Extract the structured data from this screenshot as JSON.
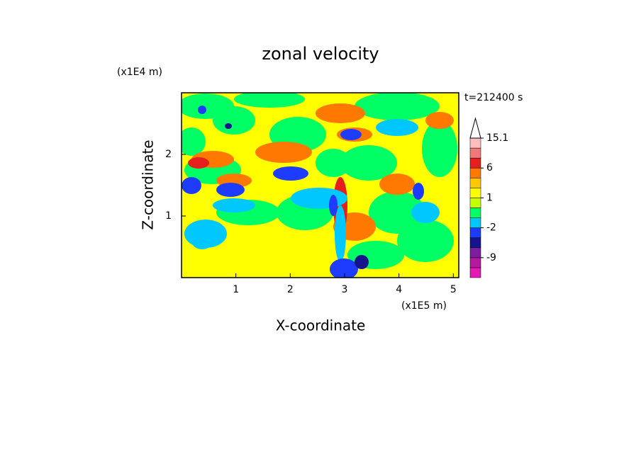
{
  "chart_data": {
    "type": "contour",
    "title": "zonal velocity",
    "x_label": "X-coordinate",
    "y_label": "Z-coordinate",
    "x_scale_label": "(x1E5 m)",
    "y_scale_label": "(x1E4 m)",
    "time_label": "t=212400 s",
    "xlim": [
      0,
      5.1
    ],
    "xticks": [
      1,
      2,
      3,
      4,
      5
    ],
    "ylim": [
      0,
      3
    ],
    "yticks": [
      1,
      2
    ],
    "colorbar": {
      "levels": [
        -15,
        -12,
        -9,
        -6,
        -4,
        -2,
        -1,
        0,
        1,
        2,
        4,
        6,
        9,
        12,
        15.1
      ],
      "colors": [
        "#e619b4",
        "#b4199e",
        "#7d1ea0",
        "#14148c",
        "#1e3cff",
        "#00c8ff",
        "#00ff64",
        "#c8ff00",
        "#ffff00",
        "#ffc800",
        "#ff7800",
        "#e61e1e",
        "#f07878",
        "#ffbebe"
      ],
      "ticks": [
        -9,
        -2,
        1,
        6,
        15.1
      ]
    }
  }
}
